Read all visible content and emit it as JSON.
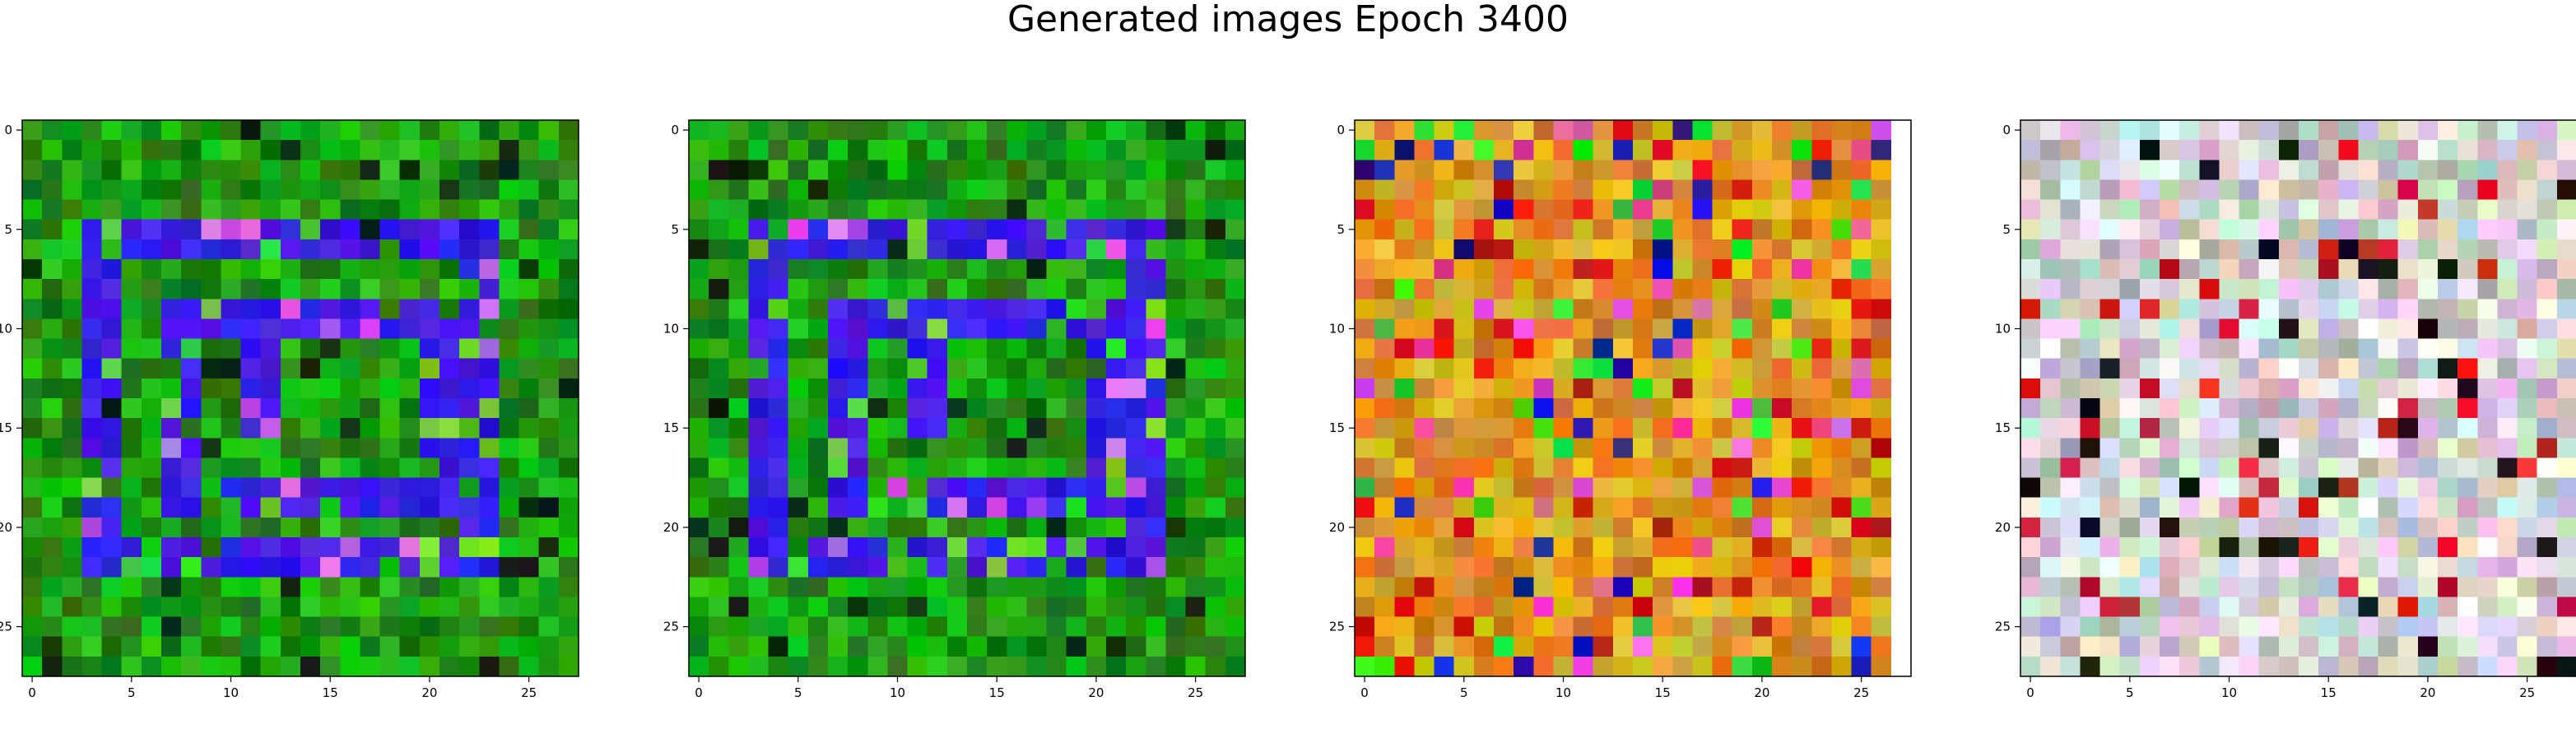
{
  "figure": {
    "title": "Generated images Epoch 3400"
  },
  "panels": [
    {
      "name": "generated-image-1",
      "palette": "green-blue",
      "grid_size": 28,
      "blank_columns": 0
    },
    {
      "name": "generated-image-2",
      "palette": "green-blue",
      "grid_size": 28,
      "blank_columns": 0
    },
    {
      "name": "generated-image-3",
      "palette": "warm",
      "grid_size": 28,
      "blank_columns": 1
    },
    {
      "name": "generated-image-4",
      "palette": "pastel",
      "grid_size": 28,
      "blank_columns": 0
    }
  ],
  "axes": {
    "x_ticks": [
      "0",
      "5",
      "10",
      "15",
      "20",
      "25"
    ],
    "y_ticks": [
      "0",
      "5",
      "10",
      "15",
      "20",
      "25"
    ],
    "tick_values": [
      0,
      5,
      10,
      15,
      20,
      25
    ]
  }
}
